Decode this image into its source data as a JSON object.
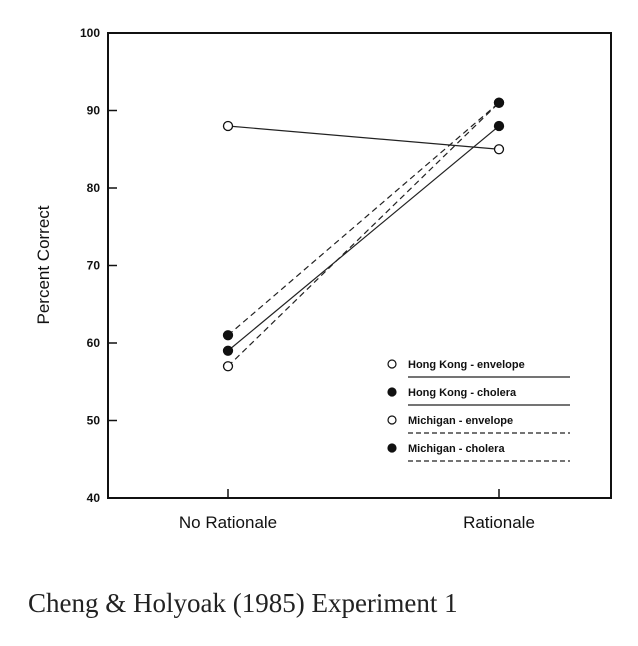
{
  "caption": "Cheng & Holyoak (1985) Experiment 1",
  "chart_data": {
    "type": "line",
    "title": "",
    "xlabel": "",
    "ylabel": "Percent Correct",
    "categories": [
      "No Rationale",
      "Rationale"
    ],
    "ylim": [
      40,
      100
    ],
    "yticks": [
      40,
      50,
      60,
      70,
      80,
      90,
      100
    ],
    "grid": false,
    "legend_position": "bottom-right",
    "series": [
      {
        "name": "Hong Kong - envelope",
        "values": [
          88,
          85
        ],
        "marker": "open",
        "line": "solid"
      },
      {
        "name": "Hong Kong - cholera",
        "values": [
          59,
          88
        ],
        "marker": "filled",
        "line": "solid"
      },
      {
        "name": "Michigan - envelope",
        "values": [
          57,
          91
        ],
        "marker": "open",
        "line": "dashed"
      },
      {
        "name": "Michigan - cholera",
        "values": [
          61,
          91
        ],
        "marker": "filled",
        "line": "dashed"
      }
    ]
  }
}
